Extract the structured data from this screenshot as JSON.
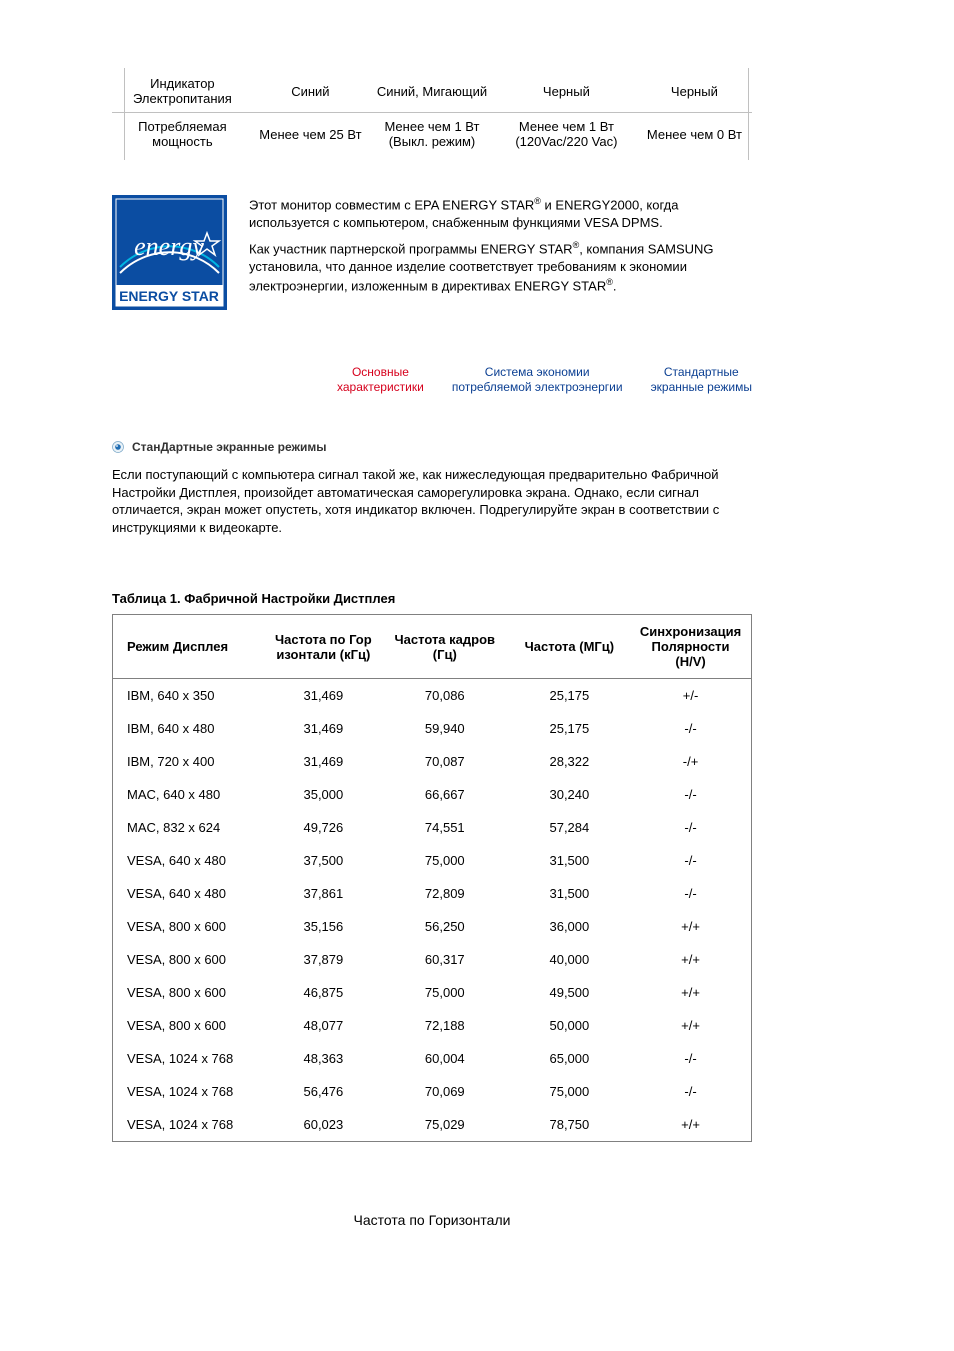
{
  "colors": {
    "text": "#000000",
    "border": "#c0c0c0",
    "table_border": "#808080",
    "nav_red": "#d6001c",
    "nav_blue": "#0b3f92",
    "logo_bg": "#0b4da2",
    "logo_accent": "#ffffff"
  },
  "top_table": {
    "rows": [
      {
        "label": "Индикатор Электропитания",
        "c1": "Синий",
        "c2": "Синий, Мигающий",
        "c3": "Черный",
        "c4": "Черный"
      },
      {
        "label": "Потребляемая мощность",
        "c1": "Менее чем 25 Вт",
        "c2": "Менее чем 1 Вт (Выкл. режим)",
        "c3": "Менее чем 1 Вт (120Vac/220 Vac)",
        "c4": "Менее чем 0 Вт"
      }
    ]
  },
  "energy": {
    "logo_caption": "ENERGY STAR",
    "p1_a": "Этот монитор совместим с EPA ENERGY STAR",
    "p1_b": " и ENERGY2000, когда используется с компьютером, снабженным функциями VESA DPMS.",
    "p2_a": "Как участник партнерской программы ENERGY STAR",
    "p2_b": ", компания SAMSUNG установила, что данное изделие соответствует требованиям к экономии электроэнергии, изложенным в директивах ENERGY STAR",
    "p2_c": ".",
    "reg": "®"
  },
  "nav": {
    "t1_a": "Основные",
    "t1_b": "характеристики",
    "t2_a": "Система экономии",
    "t2_b": "потребляемой электроэнергии",
    "t3_a": "Стандартные",
    "t3_b": "экранные режимы"
  },
  "section_heading": "СтанДартные экранные режимы",
  "paragraph": "Если поступающий с компьютера сигнал такой же, как нижеследующая предварительно Фабричной Настройки Дистплея, произойдет автоматическая саморегулировка экрана. Однако, если сигнал отличается, экран может опустеть, хотя индикатор включен. Подрегулируйте экран в соответствии с инструкциями к видеокарте.",
  "table_title": "Таблица 1. Фабричной Настройки Дистплея",
  "table": {
    "col_widths_pct": [
      24,
      18,
      20,
      19,
      19
    ],
    "headers": {
      "h1": "Режим Дисплея",
      "h2": "Частота по Гор изонтали (кГц)",
      "h3": "Частота кадров (Гц)",
      "h4": "Частота (МГц)",
      "h5": "Синхронизация Полярности (H/V)"
    },
    "rows": [
      {
        "mode": "IBM, 640 x 350",
        "hf": "31,469",
        "vf": "70,086",
        "clk": "25,175",
        "pol": "+/-"
      },
      {
        "mode": "IBM, 640 x 480",
        "hf": "31,469",
        "vf": "59,940",
        "clk": "25,175",
        "pol": "-/-"
      },
      {
        "mode": "IBM, 720 x 400",
        "hf": "31,469",
        "vf": "70,087",
        "clk": "28,322",
        "pol": "-/+"
      },
      {
        "mode": "MAC, 640 x 480",
        "hf": "35,000",
        "vf": "66,667",
        "clk": "30,240",
        "pol": "-/-"
      },
      {
        "mode": "MAC, 832 x 624",
        "hf": "49,726",
        "vf": "74,551",
        "clk": "57,284",
        "pol": "-/-"
      },
      {
        "mode": "VESA, 640 x 480",
        "hf": "37,500",
        "vf": "75,000",
        "clk": "31,500",
        "pol": "-/-"
      },
      {
        "mode": "VESA, 640 x 480",
        "hf": "37,861",
        "vf": "72,809",
        "clk": "31,500",
        "pol": "-/-"
      },
      {
        "mode": "VESA, 800 x 600",
        "hf": "35,156",
        "vf": "56,250",
        "clk": "36,000",
        "pol": "+/+"
      },
      {
        "mode": "VESA, 800 x 600",
        "hf": "37,879",
        "vf": "60,317",
        "clk": "40,000",
        "pol": "+/+"
      },
      {
        "mode": "VESA, 800 x 600",
        "hf": "46,875",
        "vf": "75,000",
        "clk": "49,500",
        "pol": "+/+"
      },
      {
        "mode": "VESA, 800 x 600",
        "hf": "48,077",
        "vf": "72,188",
        "clk": "50,000",
        "pol": "+/+"
      },
      {
        "mode": "VESA, 1024 x 768",
        "hf": "48,363",
        "vf": "60,004",
        "clk": "65,000",
        "pol": "-/-"
      },
      {
        "mode": "VESA, 1024 x 768",
        "hf": "56,476",
        "vf": "70,069",
        "clk": "75,000",
        "pol": "-/-"
      },
      {
        "mode": "VESA, 1024 x 768",
        "hf": "60,023",
        "vf": "75,029",
        "clk": "78,750",
        "pol": "+/+"
      }
    ]
  },
  "freq_title": "Частота по Горизонтали"
}
